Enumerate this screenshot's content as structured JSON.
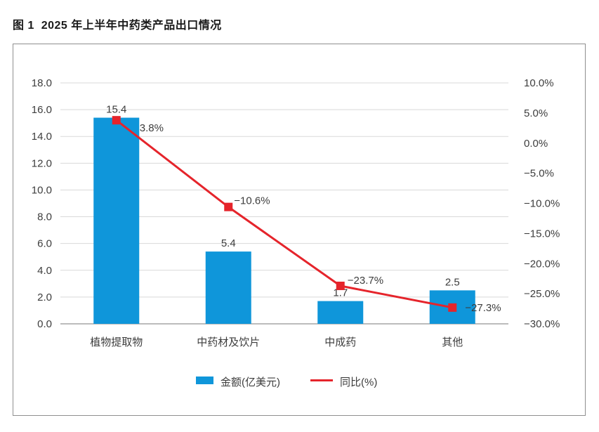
{
  "figure": {
    "title": "图 1  2025 年上半年中药类产品出口情况"
  },
  "chart_data": {
    "type": "bar",
    "subtype": "bar-line-combo-dual-axis",
    "title": "图 1  2025 年上半年中药类产品出口情况",
    "categories": [
      "植物提取物",
      "中药材及饮片",
      "中成药",
      "其他"
    ],
    "series": [
      {
        "name": "金额(亿美元)",
        "type": "bar",
        "axis": "left",
        "values": [
          15.4,
          5.4,
          1.7,
          2.5
        ],
        "point_labels": [
          "15.4",
          "5.4",
          "1.7",
          "2.5"
        ],
        "color": "#0f96da"
      },
      {
        "name": "同比(%)",
        "type": "line",
        "axis": "right",
        "values": [
          3.8,
          -10.6,
          -23.7,
          -27.3
        ],
        "point_labels": [
          "3.8%",
          "−10.6%",
          "−23.7%",
          "−27.3%"
        ],
        "color": "#e5242b"
      }
    ],
    "left_axis": {
      "min": 0,
      "max": 18,
      "step": 2,
      "tick_labels": [
        "0.0",
        "2.0",
        "4.0",
        "6.0",
        "8.0",
        "10.0",
        "12.0",
        "14.0",
        "16.0",
        "18.0"
      ]
    },
    "right_axis": {
      "min": -30,
      "max": 10,
      "step": 5,
      "tick_labels_top_down": [
        "10.0%",
        "5.0%",
        "0.0%",
        "−5.0%",
        "−10.0%",
        "−15.0%",
        "−20.0%",
        "−25.0%",
        "−30.0%"
      ]
    },
    "legend": {
      "position": "bottom-center",
      "items": [
        {
          "label": "金额(亿美元)",
          "swatch": "bar-swatch",
          "color": "#0f96da"
        },
        {
          "label": "同比(%)",
          "swatch": "line-swatch",
          "color": "#e5242b"
        }
      ]
    },
    "grid": true
  },
  "colors": {
    "bar": "#0f96da",
    "line": "#e5242b",
    "grid": "#d9d9d9",
    "axis_line": "#a6a6a6",
    "text": "#3d3d3d",
    "frame_border": "#8f8f8f",
    "background": "#ffffff"
  }
}
